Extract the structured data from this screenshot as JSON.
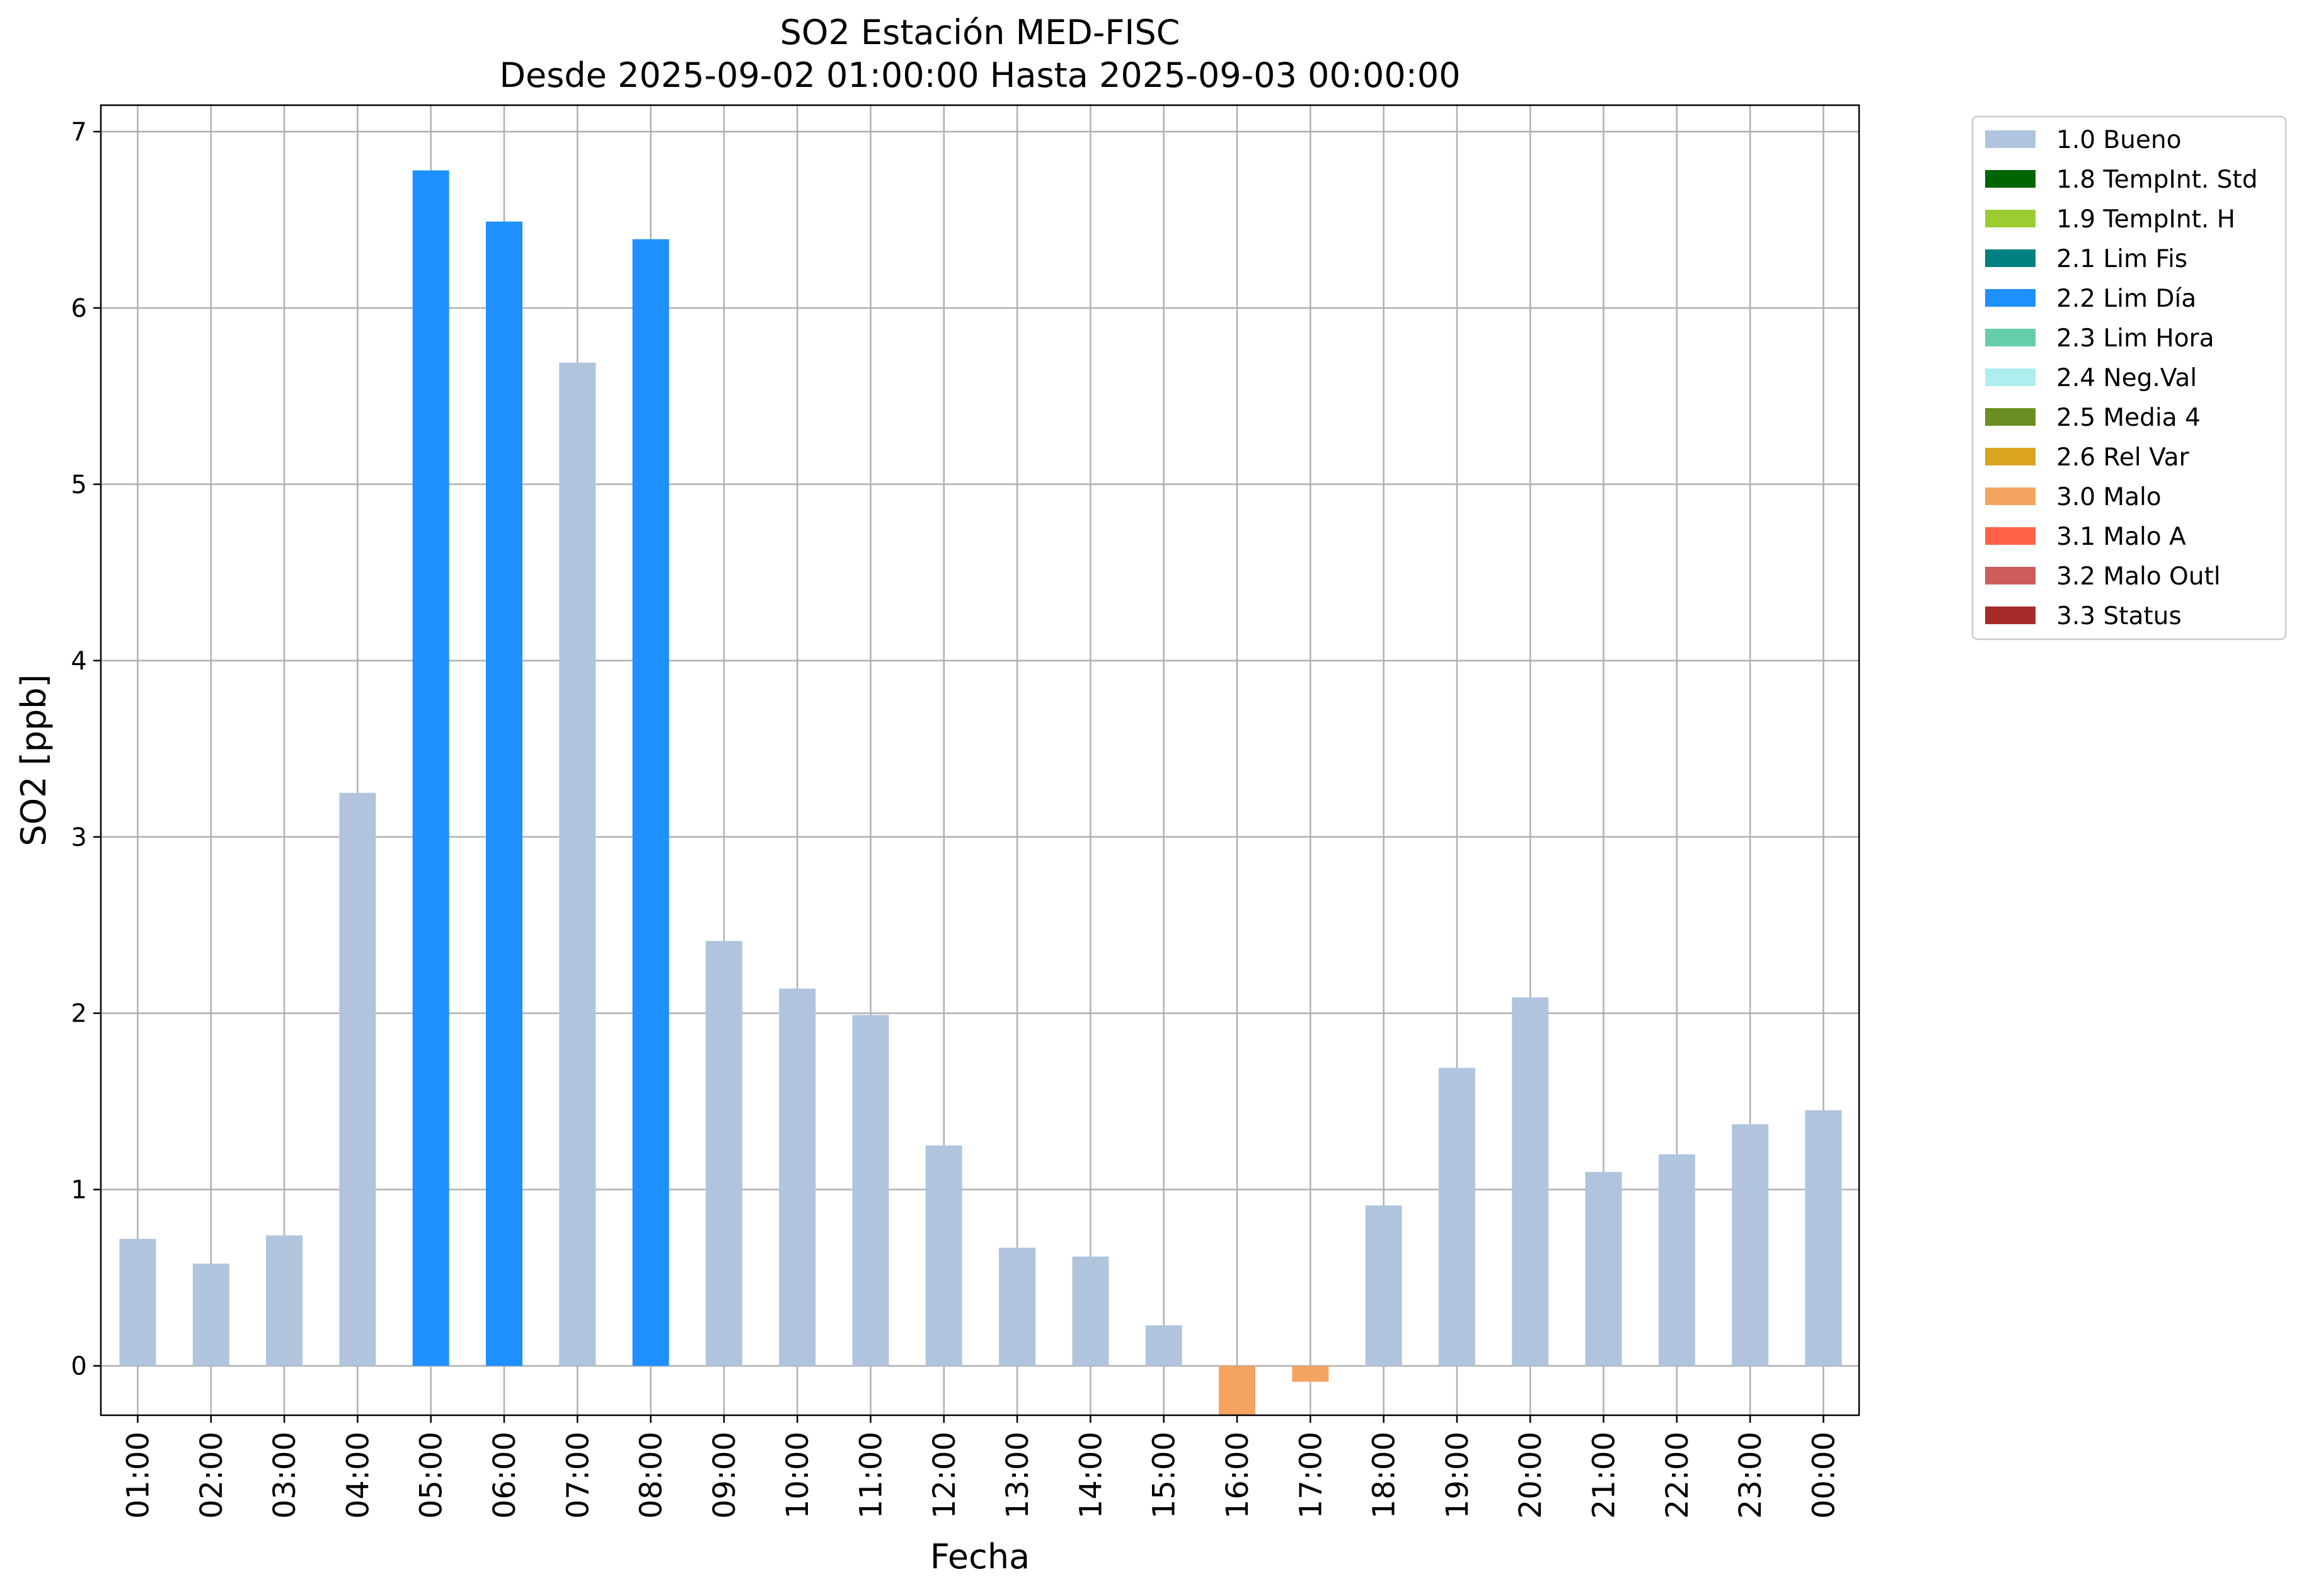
{
  "chart_data": {
    "type": "bar",
    "title_line1": "SO2 Estación MED-FISC",
    "title_line2": "Desde 2025-09-02 01:00:00 Hasta 2025-09-03 00:00:00",
    "xlabel": "Fecha",
    "ylabel": "SO2 [ppb]",
    "ylim": [
      -0.28,
      7.15
    ],
    "yticks": [
      0,
      1,
      2,
      3,
      4,
      5,
      6,
      7
    ],
    "grid": true,
    "legend_position": "outside-right-top",
    "categories": [
      "01:00",
      "02:00",
      "03:00",
      "04:00",
      "05:00",
      "06:00",
      "07:00",
      "08:00",
      "09:00",
      "10:00",
      "11:00",
      "12:00",
      "13:00",
      "14:00",
      "15:00",
      "16:00",
      "17:00",
      "18:00",
      "19:00",
      "20:00",
      "21:00",
      "22:00",
      "23:00",
      "00:00"
    ],
    "values": [
      0.72,
      0.58,
      0.74,
      3.25,
      6.78,
      6.49,
      5.69,
      6.39,
      2.41,
      2.14,
      1.99,
      1.25,
      0.67,
      0.62,
      0.23,
      -0.28,
      -0.09,
      0.91,
      1.69,
      2.09,
      1.1,
      1.2,
      1.37,
      1.45
    ],
    "flags": [
      "1.0",
      "1.0",
      "1.0",
      "1.0",
      "2.2",
      "2.2",
      "1.0",
      "2.2",
      "1.0",
      "1.0",
      "1.0",
      "1.0",
      "1.0",
      "1.0",
      "1.0",
      "3.0",
      "3.0",
      "1.0",
      "1.0",
      "1.0",
      "1.0",
      "1.0",
      "1.0",
      "1.0"
    ],
    "legend": [
      {
        "code": "1.0",
        "label": "1.0 Bueno",
        "color": "#b0c4de"
      },
      {
        "code": "1.8",
        "label": "1.8 TempInt. Std",
        "color": "#006400"
      },
      {
        "code": "1.9",
        "label": "1.9 TempInt. H",
        "color": "#9acd32"
      },
      {
        "code": "2.1",
        "label": "2.1 Lim Fis",
        "color": "#008080"
      },
      {
        "code": "2.2",
        "label": "2.2 Lim Día",
        "color": "#1e90ff"
      },
      {
        "code": "2.3",
        "label": "2.3 Lim Hora",
        "color": "#66cdaa"
      },
      {
        "code": "2.4",
        "label": "2.4 Neg.Val",
        "color": "#afeeee"
      },
      {
        "code": "2.5",
        "label": "2.5 Media 4",
        "color": "#6b8e23"
      },
      {
        "code": "2.6",
        "label": "2.6 Rel Var",
        "color": "#daa520"
      },
      {
        "code": "3.0",
        "label": "3.0 Malo",
        "color": "#f4a460"
      },
      {
        "code": "3.1",
        "label": "3.1 Malo A",
        "color": "#ff6347"
      },
      {
        "code": "3.2",
        "label": "3.2 Malo Outl",
        "color": "#cd5c5c"
      },
      {
        "code": "3.3",
        "label": "3.3 Status",
        "color": "#a52a2a"
      }
    ]
  }
}
